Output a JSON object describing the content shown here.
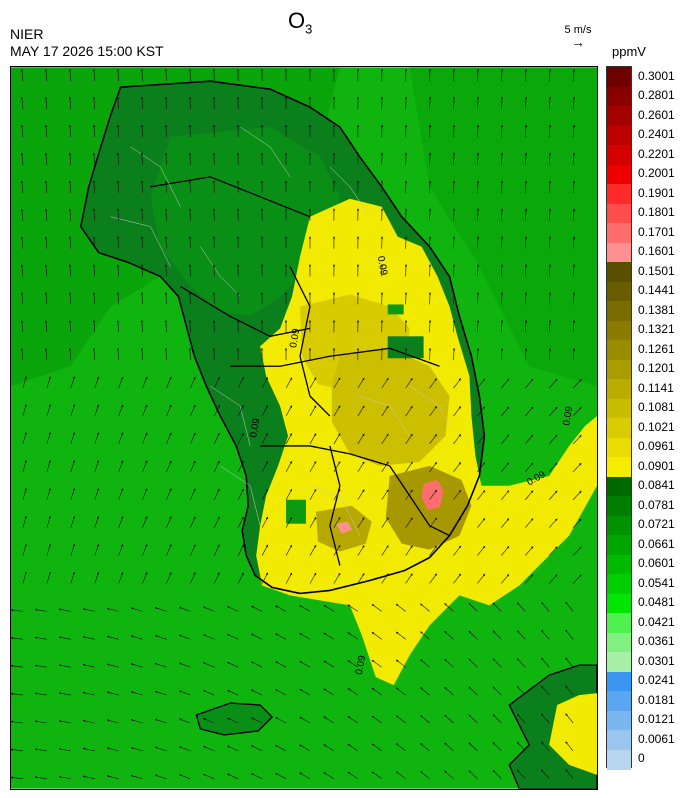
{
  "header": {
    "agency": "NIER",
    "timestamp": "MAY 17 2026 15:00 KST",
    "species_main": "O",
    "species_sub": "3"
  },
  "wind_reference": {
    "label": "5 m/s",
    "arrow": "→"
  },
  "legend": {
    "unit": "ppmV",
    "levels": [
      {
        "label": "0.3001",
        "color": "#6e0000"
      },
      {
        "label": "0.2801",
        "color": "#8a0000"
      },
      {
        "label": "0.2601",
        "color": "#a40000"
      },
      {
        "label": "0.2401",
        "color": "#bc0000"
      },
      {
        "label": "0.2201",
        "color": "#d40000"
      },
      {
        "label": "0.2001",
        "color": "#ee0000"
      },
      {
        "label": "0.1901",
        "color": "#ff2a2a"
      },
      {
        "label": "0.1801",
        "color": "#ff4c4c"
      },
      {
        "label": "0.1701",
        "color": "#ff6e6e"
      },
      {
        "label": "0.1601",
        "color": "#ff9090"
      },
      {
        "label": "0.1501",
        "color": "#5a4e00"
      },
      {
        "label": "0.1441",
        "color": "#6a5c00"
      },
      {
        "label": "0.1381",
        "color": "#7a6c00"
      },
      {
        "label": "0.1321",
        "color": "#8a7c00"
      },
      {
        "label": "0.1261",
        "color": "#9a8c00"
      },
      {
        "label": "0.1201",
        "color": "#aa9c00"
      },
      {
        "label": "0.1141",
        "color": "#baac00"
      },
      {
        "label": "0.1081",
        "color": "#cabd00"
      },
      {
        "label": "0.1021",
        "color": "#d9cc00"
      },
      {
        "label": "0.0961",
        "color": "#e8dc00"
      },
      {
        "label": "0.0901",
        "color": "#f6ec00"
      },
      {
        "label": "0.0841",
        "color": "#006a00"
      },
      {
        "label": "0.0781",
        "color": "#007e00"
      },
      {
        "label": "0.0721",
        "color": "#009200"
      },
      {
        "label": "0.0661",
        "color": "#00a600"
      },
      {
        "label": "0.0601",
        "color": "#00ba00"
      },
      {
        "label": "0.0541",
        "color": "#00ce00"
      },
      {
        "label": "0.0481",
        "color": "#00e600"
      },
      {
        "label": "0.0421",
        "color": "#50f050"
      },
      {
        "label": "0.0361",
        "color": "#80f080"
      },
      {
        "label": "0.0301",
        "color": "#a8f0a8"
      },
      {
        "label": "0.0241",
        "color": "#3a96f0"
      },
      {
        "label": "0.0181",
        "color": "#5aa6f0"
      },
      {
        "label": "0.0121",
        "color": "#7ab6f0"
      },
      {
        "label": "0.0061",
        "color": "#98c6ee"
      },
      {
        "label": "0",
        "color": "#b6d6ee"
      }
    ]
  },
  "map": {
    "contour_label": "0.09",
    "colors": {
      "sea": "#0fb40f",
      "land_low": "#0a7f1c",
      "land_mid": "#0c9a10",
      "high_yellow": "#f2ea00",
      "elevated": "#b8a800",
      "peak": "#ff6e6e"
    }
  }
}
